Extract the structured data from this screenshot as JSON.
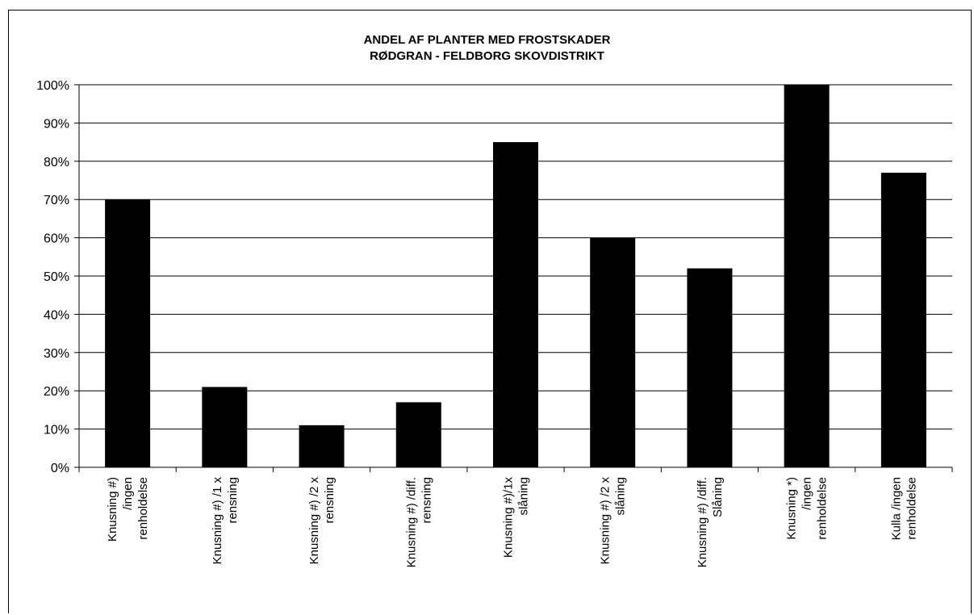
{
  "chart_data": {
    "type": "bar",
    "title": [
      "ANDEL AF PLANTER MED FROSTSKADER",
      "RØDGRAN - FELDBORG SKOVDISTRIKT"
    ],
    "categories": [
      [
        "Knusning #)",
        "/ingen",
        "renholdelse"
      ],
      [
        "Knusning #) /1 x",
        "rensning"
      ],
      [
        "Knusning #) /2 x",
        "rensning"
      ],
      [
        "Knusning #) /diff.",
        "rensning"
      ],
      [
        "Knusning #)/1x",
        "slåning"
      ],
      [
        "Knusning #) /2 x",
        "slåning"
      ],
      [
        "Knusning #) /diff.",
        "Slåning"
      ],
      [
        "Knusning *)",
        "/ingen",
        "renholdelse"
      ],
      [
        "Kulla /ingen",
        "renholdelse"
      ]
    ],
    "values": [
      70,
      21,
      11,
      17,
      85,
      60,
      52,
      100,
      77
    ],
    "ylim": [
      0,
      100
    ],
    "yticks": [
      "0%",
      "10%",
      "20%",
      "30%",
      "40%",
      "50%",
      "60%",
      "70%",
      "80%",
      "90%",
      "100%"
    ],
    "grid": true,
    "bar_color": "#000000"
  }
}
